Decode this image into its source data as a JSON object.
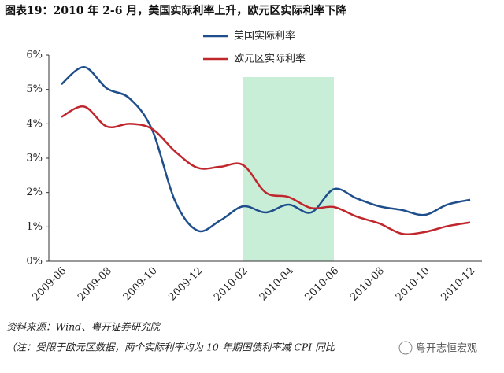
{
  "chart_data": {
    "type": "line",
    "title": "图表19：2010 年 2-6 月，美国实际利率上升，欧元区实际利率下降",
    "categories": [
      "2009-06",
      null,
      "2009-08",
      null,
      "2009-10",
      null,
      "2009-12",
      null,
      "2010-02",
      null,
      "2010-04",
      null,
      "2010-06",
      null,
      "2010-08",
      null,
      "2010-10",
      null,
      "2010-12"
    ],
    "series": [
      {
        "name": "美国实际利率",
        "color": "#1f4e8c",
        "values": [
          5.15,
          5.65,
          5.03,
          4.74,
          3.82,
          1.76,
          0.89,
          1.19,
          1.6,
          1.42,
          1.65,
          1.42,
          2.1,
          1.83,
          1.6,
          1.49,
          1.35,
          1.65,
          1.79
        ]
      },
      {
        "name": "欧元区实际利率",
        "color": "#c0272d",
        "values": [
          4.2,
          4.5,
          3.92,
          4.0,
          3.85,
          3.2,
          2.72,
          2.75,
          2.8,
          2.0,
          1.87,
          1.55,
          1.58,
          1.3,
          1.1,
          0.8,
          0.85,
          1.02,
          1.13
        ]
      }
    ],
    "ylim": [
      0,
      6
    ],
    "yticks": [
      {
        "value": 0,
        "label": "0%"
      },
      {
        "value": 1,
        "label": "1%"
      },
      {
        "value": 2,
        "label": "2%"
      },
      {
        "value": 3,
        "label": "3%"
      },
      {
        "value": 4,
        "label": "4%"
      },
      {
        "value": 5,
        "label": "5%"
      },
      {
        "value": 6,
        "label": "6%"
      }
    ],
    "shaded_range": [
      "2010-02",
      "2010-06"
    ],
    "shade_color": "#c8eed8",
    "source": "资料来源：Wind、粤开证券研究院",
    "note": "（注：受限于欧元区数据，两个实际利率均为 10 年期国债利率减 CPI 同比",
    "watermark": "粤开志恒宏观"
  }
}
